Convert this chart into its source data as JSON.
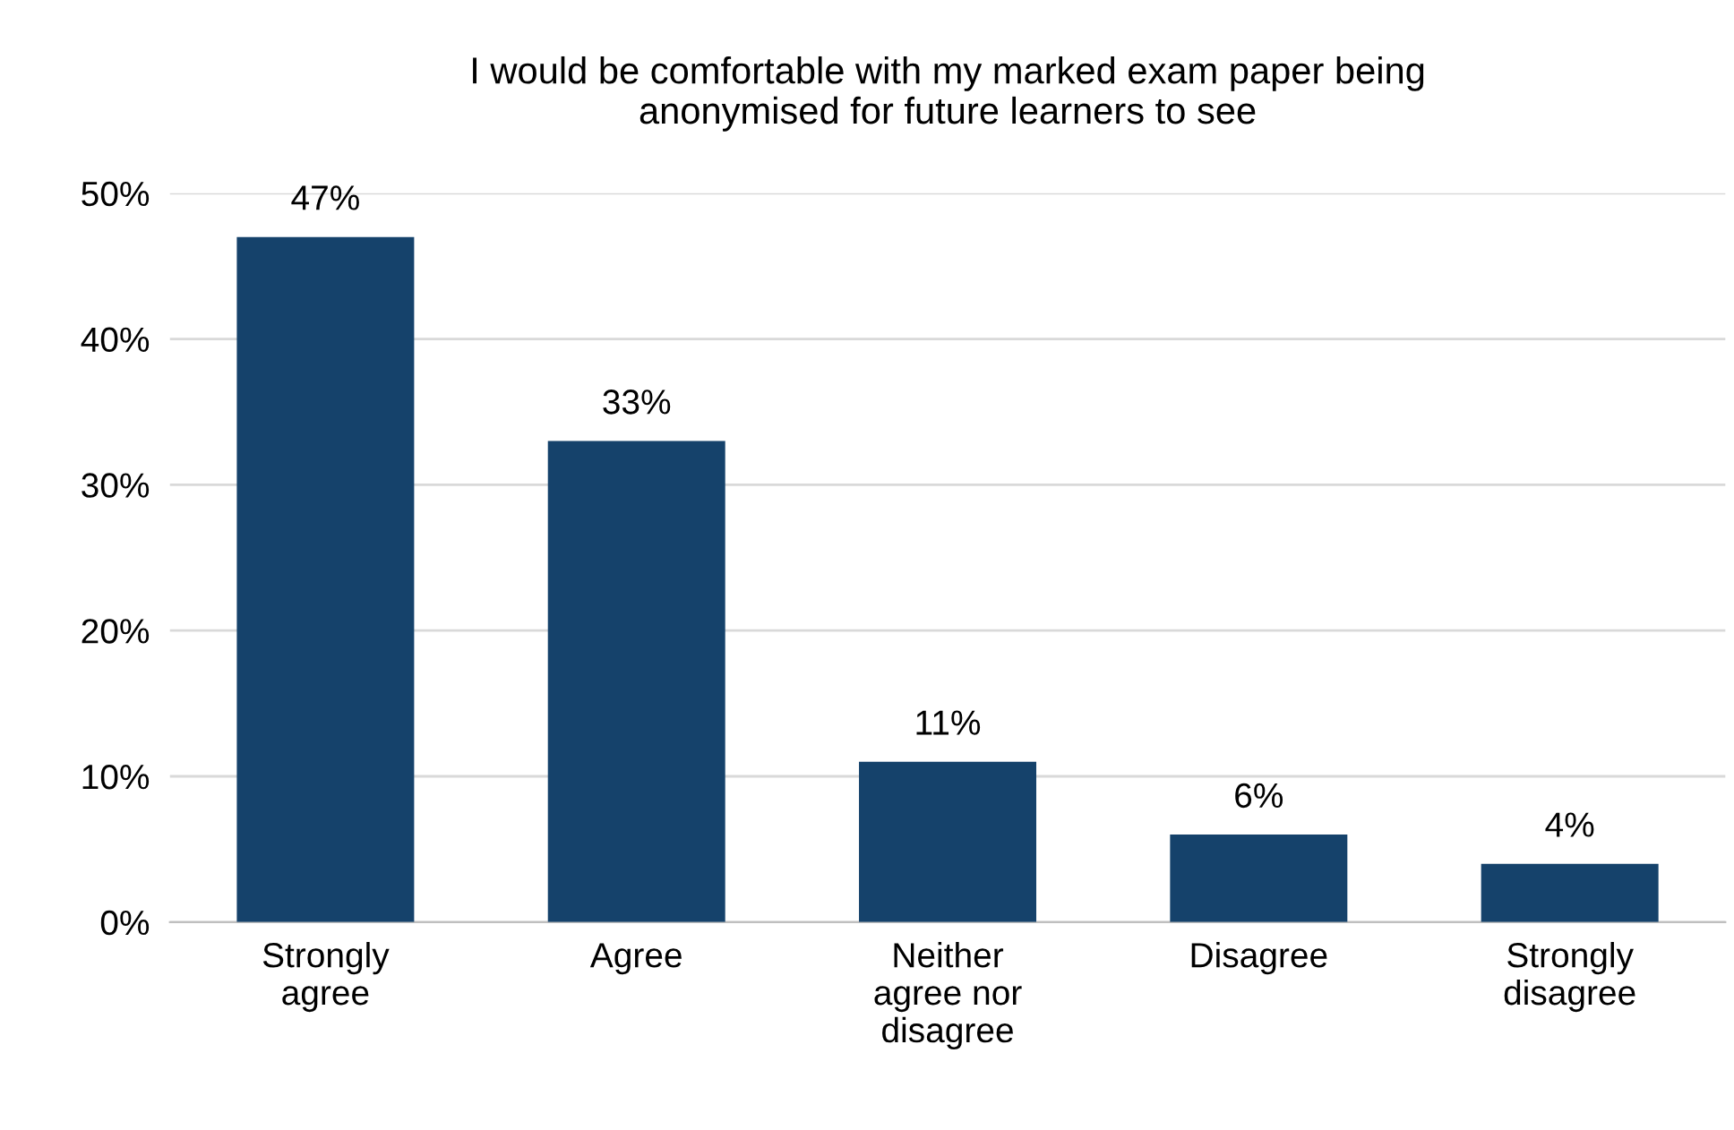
{
  "chart_data": {
    "type": "bar",
    "title": "I would be comfortable with my marked exam paper being\nanonymised for future learners to see",
    "categories": [
      "Strongly\nagree",
      "Agree",
      "Neither\nagree nor\ndisagree",
      "Disagree",
      "Strongly\ndisagree"
    ],
    "values": [
      47,
      33,
      11,
      6,
      4
    ],
    "value_labels": [
      "47%",
      "33%",
      "11%",
      "6%",
      "4%"
    ],
    "color": "#15426b",
    "ylim": [
      0,
      50
    ],
    "yticks": [
      {
        "value": 0,
        "label": "0%"
      },
      {
        "value": 10,
        "label": "10%"
      },
      {
        "value": 20,
        "label": "20%"
      },
      {
        "value": 30,
        "label": "30%"
      },
      {
        "value": 40,
        "label": "40%"
      },
      {
        "value": 50,
        "label": "50%"
      }
    ],
    "grid": "y"
  }
}
